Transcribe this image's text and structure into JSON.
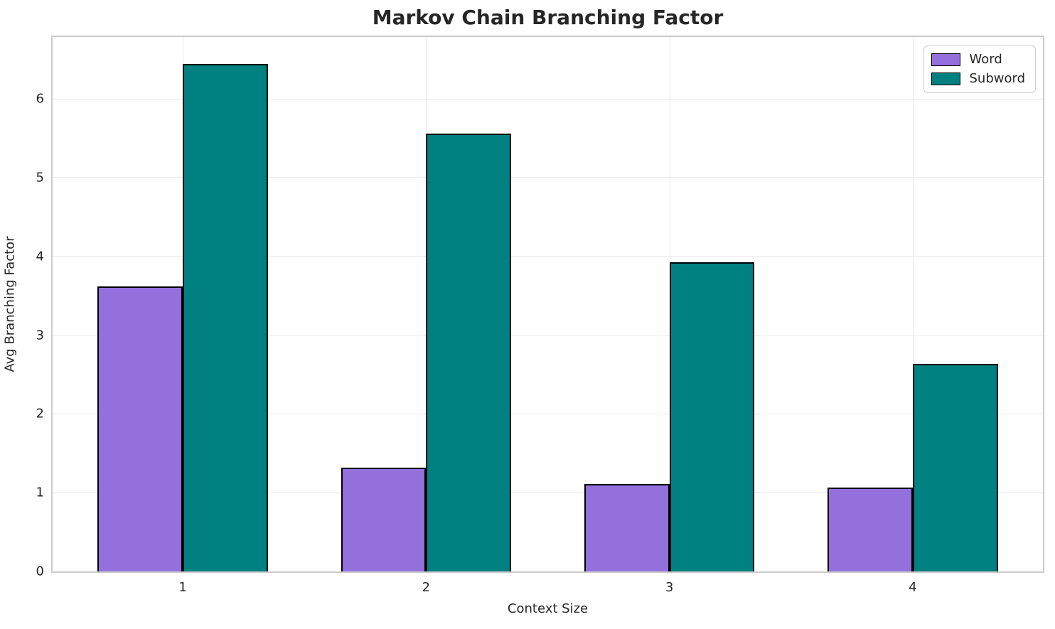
{
  "chart_data": {
    "type": "bar",
    "title": "Markov Chain Branching Factor",
    "xlabel": "Context Size",
    "ylabel": "Avg Branching Factor",
    "categories": [
      "1",
      "2",
      "3",
      "4"
    ],
    "series": [
      {
        "name": "Word",
        "color": "#9370DB",
        "values": [
          3.62,
          1.32,
          1.11,
          1.07
        ]
      },
      {
        "name": "Subword",
        "color": "#008080",
        "values": [
          6.45,
          5.56,
          3.93,
          2.64
        ]
      }
    ],
    "ylim": [
      0,
      6.79
    ],
    "xlim": [
      0.465,
      4.535
    ],
    "yticks": [
      0,
      1,
      2,
      3,
      4,
      5,
      6
    ],
    "bar_width_units": 0.35,
    "grid": true,
    "legend_position": "upper right",
    "bar_edge_color": "#000000",
    "grid_color": "#e9e9e9",
    "spine_color": "#cccccc",
    "text_color": "#262626"
  }
}
